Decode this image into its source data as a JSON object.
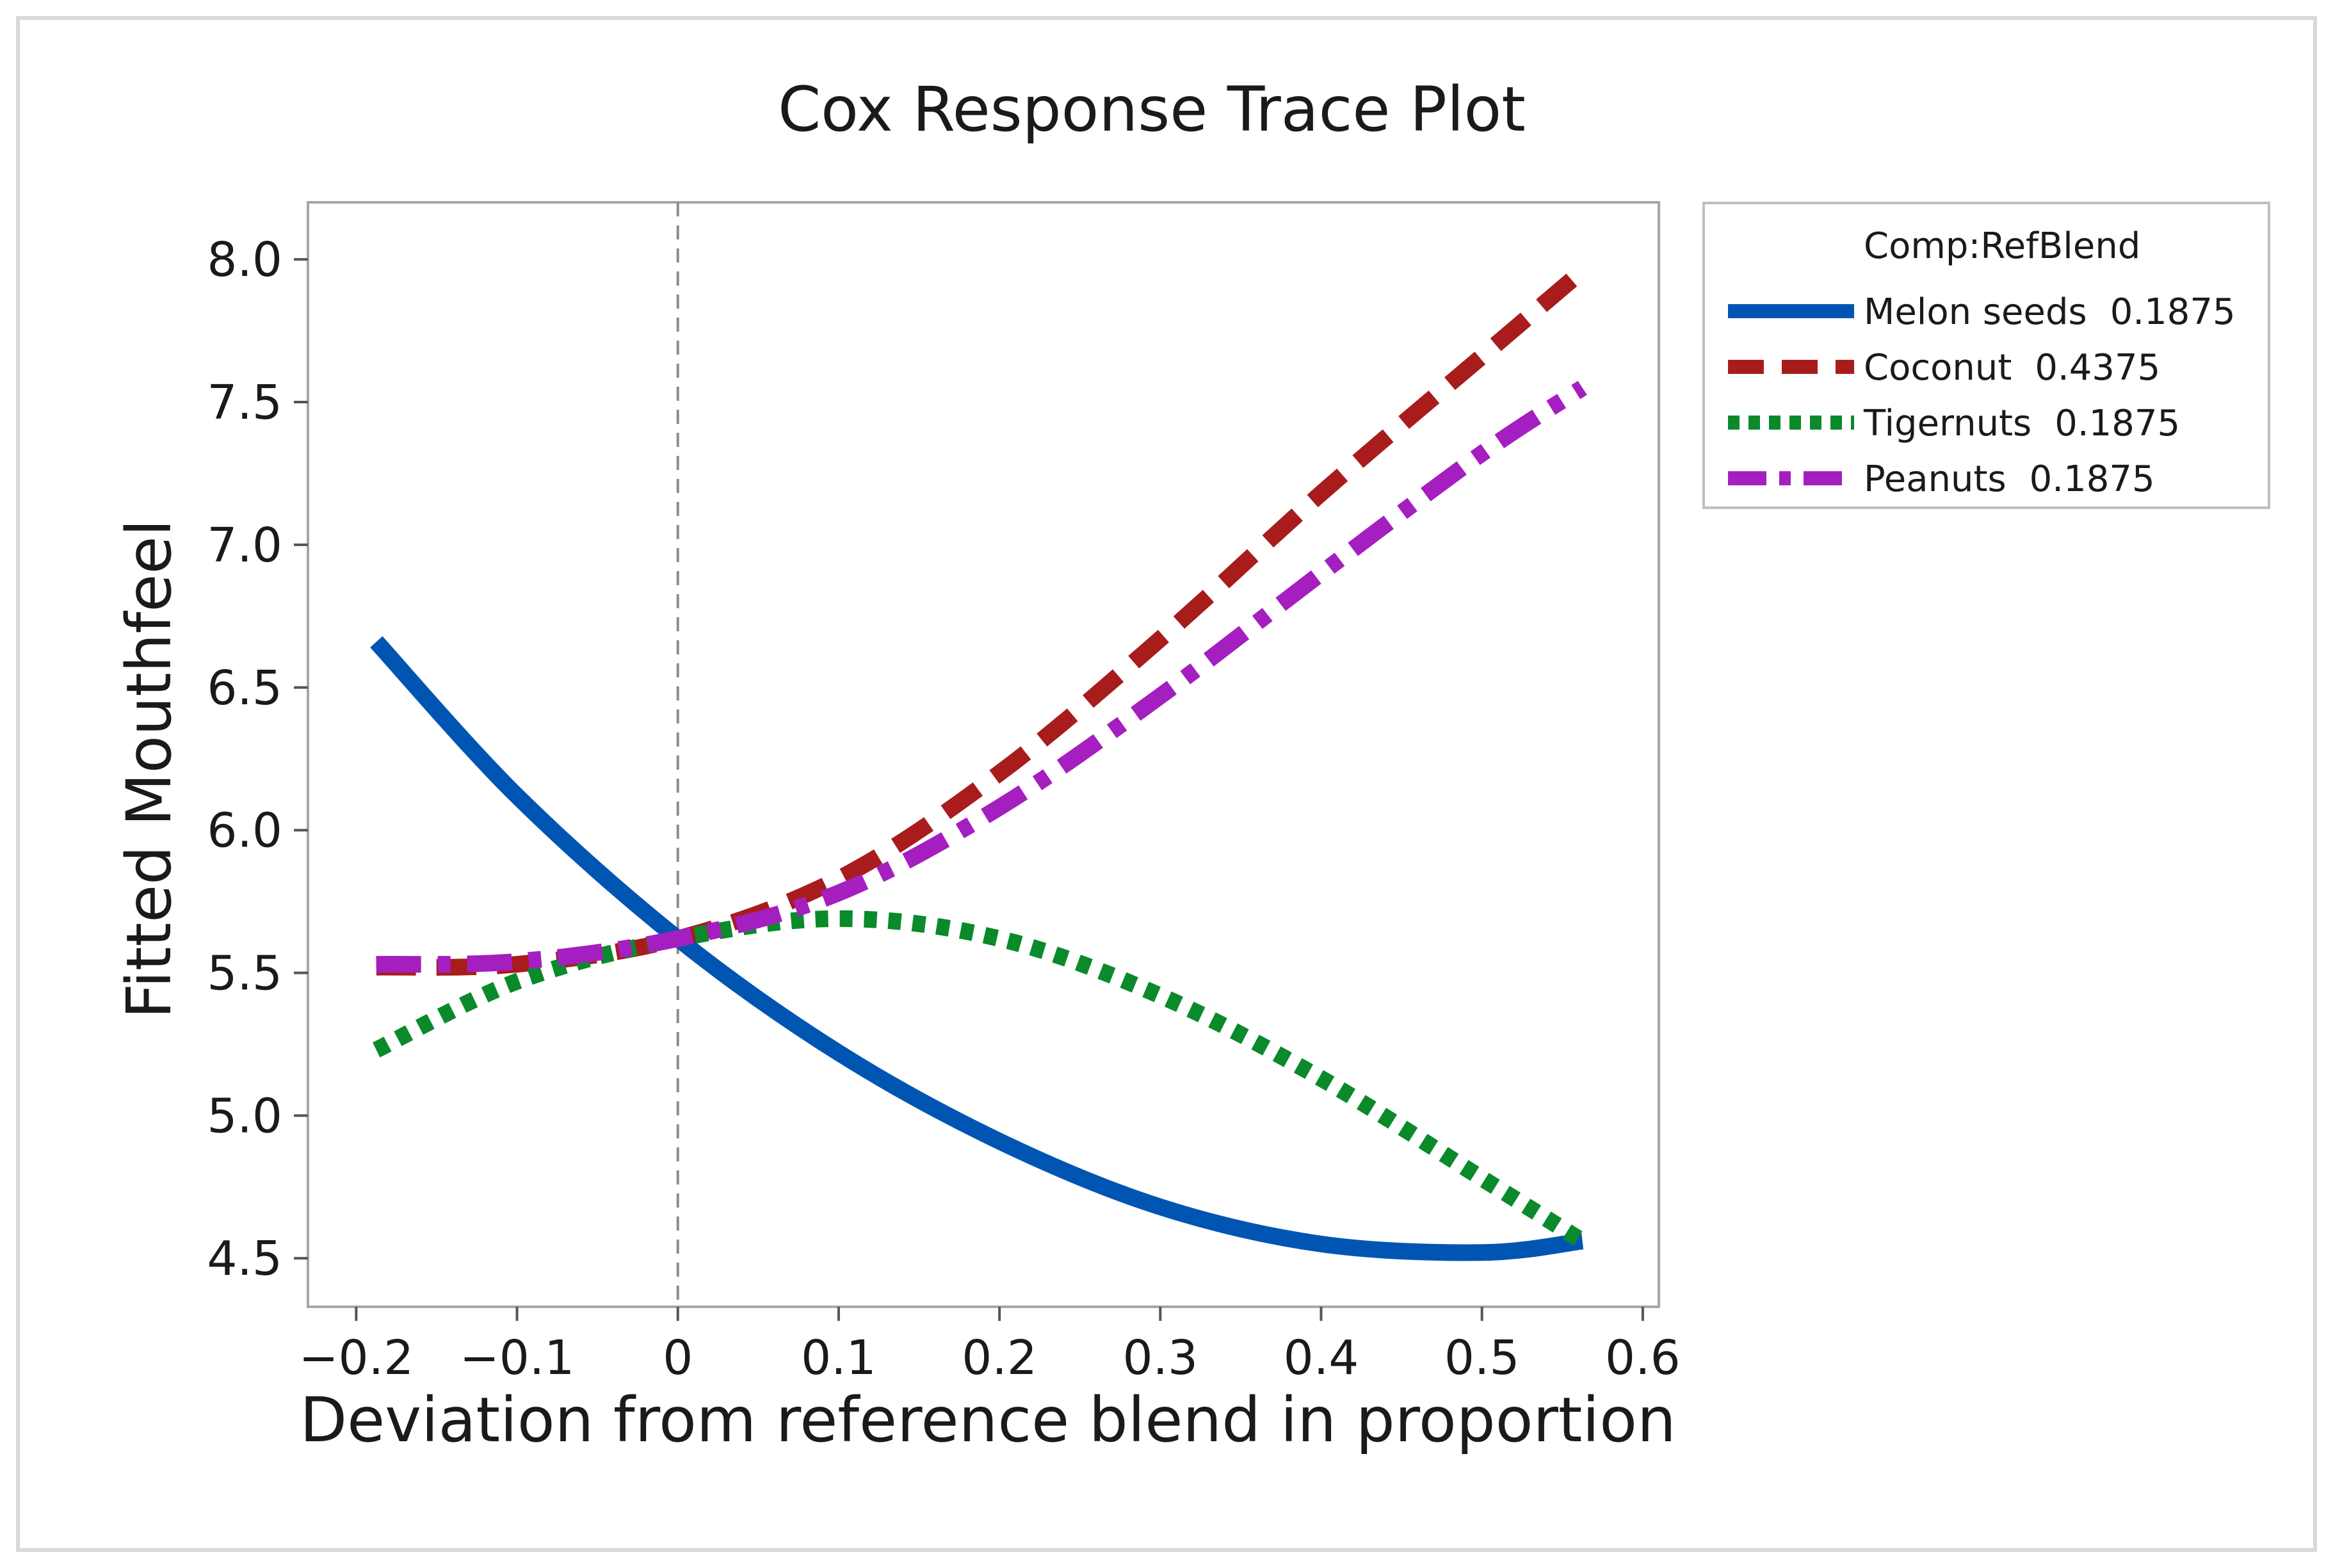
{
  "chart_data": {
    "type": "line",
    "title": "Cox Response Trace Plot",
    "xlabel": "Deviation from reference blend in proportion",
    "ylabel": "Fitted Mouthfeel",
    "xlim": [
      -0.23,
      0.61
    ],
    "ylim": [
      4.33,
      8.2
    ],
    "xticks": [
      -0.2,
      -0.1,
      0,
      0.1,
      0.2,
      0.3,
      0.4,
      0.5,
      0.6
    ],
    "xtick_labels": [
      "−0.2",
      "−0.1",
      "0",
      "0.1",
      "0.2",
      "0.3",
      "0.4",
      "0.5",
      "0.6"
    ],
    "yticks": [
      4.5,
      5.0,
      5.5,
      6.0,
      6.5,
      7.0,
      7.5,
      8.0
    ],
    "ytick_labels": [
      "4.5",
      "5.0",
      "5.5",
      "6.0",
      "6.5",
      "7.0",
      "7.5",
      "8.0"
    ],
    "reference_line_x": 0,
    "legend": {
      "title": "Comp:RefBlend",
      "position": "right"
    },
    "series": [
      {
        "name": "Melon seeds",
        "value_label": "0.1875",
        "color": "#0055b3",
        "style": "solid",
        "x": [
          -0.1875,
          -0.1,
          0,
          0.1,
          0.2,
          0.3,
          0.4,
          0.5,
          0.5625
        ],
        "y": [
          6.66,
          6.12,
          5.62,
          5.22,
          4.91,
          4.68,
          4.55,
          4.52,
          4.56
        ]
      },
      {
        "name": "Coconut",
        "value_label": "0.4375",
        "color": "#a81c1c",
        "style": "dashed",
        "x": [
          -0.1875,
          -0.1,
          0,
          0.1,
          0.2,
          0.3,
          0.4,
          0.5,
          0.5625
        ],
        "y": [
          5.52,
          5.53,
          5.62,
          5.83,
          6.2,
          6.67,
          7.18,
          7.66,
          7.96
        ]
      },
      {
        "name": "Tigernuts",
        "value_label": "0.1875",
        "color": "#0a8a2a",
        "style": "dotted",
        "x": [
          -0.1875,
          -0.1,
          0,
          0.1,
          0.2,
          0.3,
          0.4,
          0.5,
          0.5625
        ],
        "y": [
          5.23,
          5.47,
          5.62,
          5.69,
          5.62,
          5.42,
          5.13,
          4.78,
          4.56
        ]
      },
      {
        "name": "Peanuts",
        "value_label": "0.1875",
        "color": "#a51ec0",
        "style": "dashdot",
        "x": [
          -0.1875,
          -0.1,
          0,
          0.1,
          0.2,
          0.3,
          0.4,
          0.5,
          0.5625
        ],
        "y": [
          5.53,
          5.54,
          5.62,
          5.78,
          6.08,
          6.47,
          6.9,
          7.32,
          7.55
        ]
      }
    ]
  }
}
